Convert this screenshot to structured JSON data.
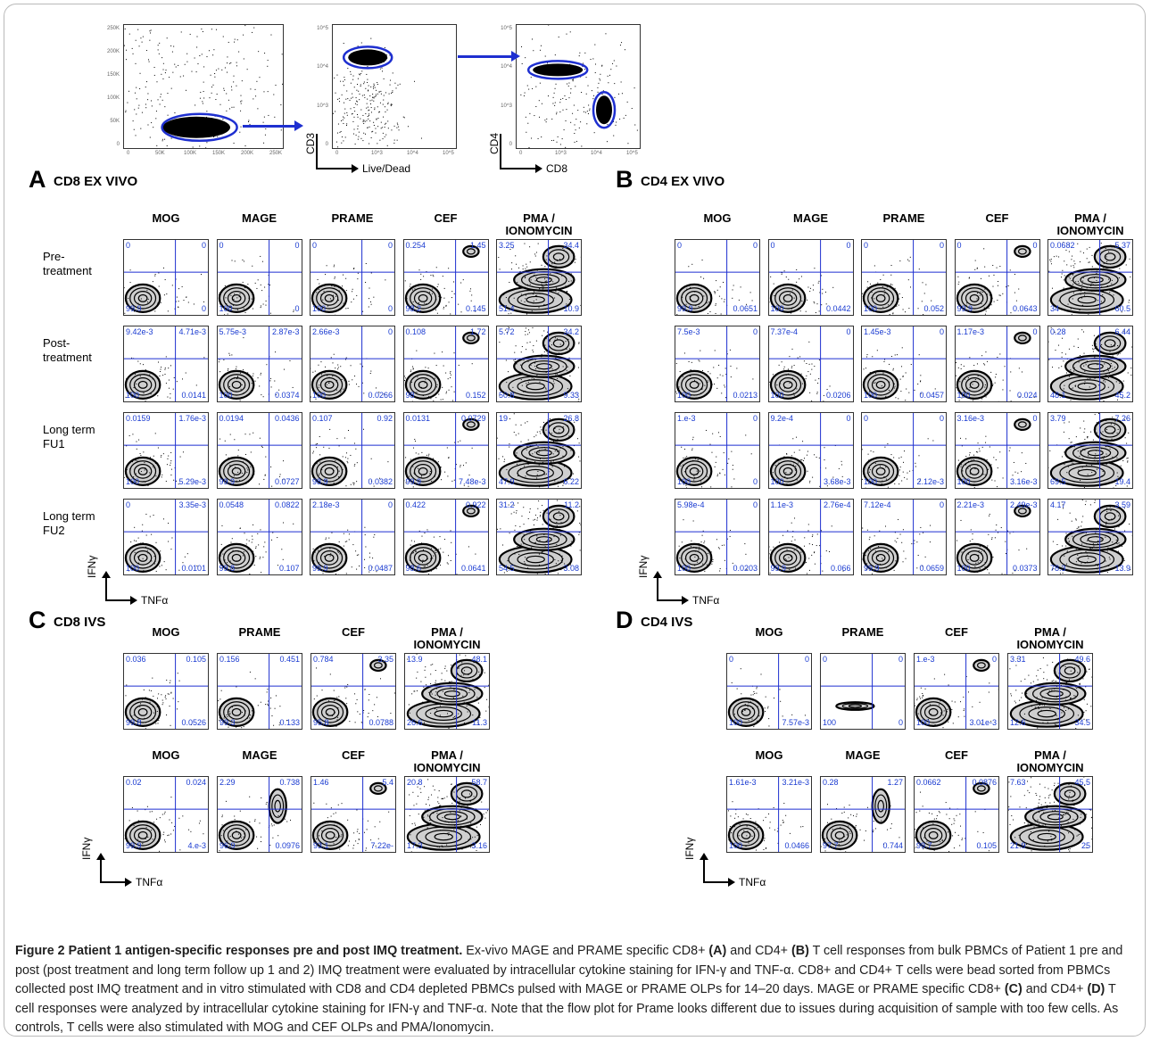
{
  "gating": {
    "plots": [
      {
        "ylabel": "",
        "xlabel": "",
        "yticks": [
          "250K",
          "200K",
          "150K",
          "100K",
          "50K",
          "0"
        ],
        "xticks": [
          "0",
          "50K",
          "100K",
          "150K",
          "200K",
          "250K"
        ]
      },
      {
        "ylabel": "CD3",
        "xlabel": "Live/Dead",
        "yticks": [
          "10^5",
          "10^4",
          "10^3",
          "0"
        ],
        "xticks": [
          "0",
          "10^3",
          "10^4",
          "10^5"
        ]
      },
      {
        "ylabel": "CD4",
        "xlabel": "CD8",
        "yticks": [
          "10^5",
          "10^4",
          "10^3",
          "0"
        ],
        "xticks": [
          "0",
          "10^3",
          "10^4",
          "10^5"
        ]
      }
    ]
  },
  "panel_A": {
    "letter": "A",
    "title": "CD8 EX VIVO",
    "columns": [
      "MOG",
      "MAGE",
      "PRAME",
      "CEF",
      "PMA / IONOMYCIN"
    ],
    "rows": [
      "Pre-\ntreatment",
      "Post-\ntreatment",
      "Long term\nFU1",
      "Long term\nFU2"
    ],
    "ylabel": "IFNγ",
    "xlabel": "TNFα",
    "quadrants": [
      [
        [
          "0",
          "0",
          "99.9",
          "0"
        ],
        [
          "0",
          "0",
          "100",
          "0"
        ],
        [
          "0",
          "0",
          "100",
          "0"
        ],
        [
          "0.254",
          "1.45",
          "98.2",
          "0.145"
        ],
        [
          "3.25",
          "34.4",
          "51.4",
          "10.9"
        ]
      ],
      [
        [
          "9.42e-3",
          "4.71e-3",
          "100",
          "0.0141"
        ],
        [
          "5.75e-3",
          "2.87e-3",
          "100",
          "0.0374"
        ],
        [
          "2.66e-3",
          "0",
          "100",
          "0.0266"
        ],
        [
          "0.108",
          "1.72",
          "98",
          "0.152"
        ],
        [
          "5.72",
          "34.2",
          "50.8",
          "9.33"
        ]
      ],
      [
        [
          "0.0159",
          "1.76e-3",
          "100",
          "5.29e-3"
        ],
        [
          "0.0194",
          "0.0436",
          "99.9",
          "0.0727"
        ],
        [
          "0.107",
          "0.92",
          "98.9",
          "0.0382"
        ],
        [
          "0.0131",
          "0.0729",
          "99.9",
          "7.48e-3"
        ],
        [
          "19",
          "26.8",
          "47.9",
          "6.22"
        ]
      ],
      [
        [
          "0",
          "3.35e-3",
          "100",
          "0.0101"
        ],
        [
          "0.0548",
          "0.0822",
          "99.8",
          "0.107"
        ],
        [
          "2.18e-3",
          "0",
          "99.9",
          "0.0487"
        ],
        [
          "0.422",
          "0.922",
          "98.6",
          "0.0641"
        ],
        [
          "31.2",
          "11.2",
          "54.5",
          "3.08"
        ]
      ]
    ]
  },
  "panel_B": {
    "letter": "B",
    "title": "CD4 EX VIVO",
    "columns": [
      "MOG",
      "MAGE",
      "PRAME",
      "CEF",
      "PMA / IONOMYCIN"
    ],
    "ylabel": "IFNγ",
    "xlabel": "TNFα",
    "quadrants": [
      [
        [
          "0",
          "0",
          "99.9",
          "0.0651"
        ],
        [
          "0",
          "0",
          "100",
          "0.0442"
        ],
        [
          "0",
          "0",
          "100",
          "0.052"
        ],
        [
          "0",
          "0",
          "99.9",
          "0.0643"
        ],
        [
          "0.0682",
          "5.37",
          "34",
          "60.5"
        ]
      ],
      [
        [
          "7.5e-3",
          "0",
          "100",
          "0.0213"
        ],
        [
          "7.37e-4",
          "0",
          "100",
          "0.0206"
        ],
        [
          "1.45e-3",
          "0",
          "100",
          "0.0457"
        ],
        [
          "1.17e-3",
          "0",
          "100",
          "0.024"
        ],
        [
          "0.28",
          "6.44",
          "48.1",
          "45.2"
        ]
      ],
      [
        [
          "1.e-3",
          "0",
          "100",
          "0"
        ],
        [
          "9.2e-4",
          "0",
          "100",
          "3.68e-3"
        ],
        [
          "0",
          "0",
          "100",
          "2.12e-3"
        ],
        [
          "3.16e-3",
          "0",
          "100",
          "3.16e-3"
        ],
        [
          "3.79",
          "7.26",
          "69.5",
          "19.4"
        ]
      ],
      [
        [
          "5.98e-4",
          "0",
          "100",
          "0.0203"
        ],
        [
          "1.1e-3",
          "2.76e-4",
          "99.9",
          "0.066"
        ],
        [
          "7.12e-4",
          "0",
          "99.9",
          "0.0659"
        ],
        [
          "2.21e-3",
          "2.49e-3",
          "100",
          "0.0373"
        ],
        [
          "4.17",
          "3.59",
          "78.3",
          "13.9"
        ]
      ]
    ]
  },
  "panel_C": {
    "letter": "C",
    "title": "CD8 IVS",
    "ylabel": "IFNγ",
    "xlabel": "TNFα",
    "rows": [
      {
        "columns": [
          "MOG",
          "PRAME",
          "CEF",
          "PMA / IONOMYCIN"
        ],
        "quadrants": [
          [
            "0.036",
            "0.105",
            "99.8",
            "0.0526"
          ],
          [
            "0.156",
            "0.451",
            "99.3",
            "0.133"
          ],
          [
            "0.784",
            "3.35",
            "95.8",
            "0.0788"
          ],
          [
            "13.9",
            "48.1",
            "26.6",
            "11.3"
          ]
        ]
      },
      {
        "columns": [
          "MOG",
          "MAGE",
          "CEF",
          "PMA / IONOMYCIN"
        ],
        "quadrants": [
          [
            "0.02",
            "0.024",
            "99.9",
            "4.e-3"
          ],
          [
            "2.29",
            "0.738",
            "96.9",
            "0.0976"
          ],
          [
            "1.46",
            "5.4",
            "93.1",
            "7.22e-"
          ],
          [
            "20.8",
            "58.7",
            "17.3",
            "3.16"
          ]
        ]
      }
    ]
  },
  "panel_D": {
    "letter": "D",
    "title": "CD4 IVS",
    "ylabel": "IFNγ",
    "xlabel": "TNFα",
    "rows": [
      {
        "columns": [
          "MOG",
          "PRAME",
          "CEF",
          "PMA / IONOMYCIN"
        ],
        "quadrants": [
          [
            "0",
            "0",
            "100",
            "7.57e-3"
          ],
          [
            "0",
            "0",
            "100",
            "0"
          ],
          [
            "1.e-3",
            "0",
            "100",
            "3.01e-3"
          ],
          [
            "3.31",
            "49.6",
            "12.6",
            "34.5"
          ]
        ]
      },
      {
        "columns": [
          "MOG",
          "MAGE",
          "CEF",
          "PMA / IONOMYCIN"
        ],
        "quadrants": [
          [
            "1.61e-3",
            "3.21e-3",
            "100",
            "0.0466"
          ],
          [
            "0.28",
            "1.27",
            "97.7",
            "0.744"
          ],
          [
            "0.0662",
            "0.0876",
            "99.7",
            "0.105"
          ],
          [
            "7.63",
            "45.5",
            "21.9",
            "25"
          ]
        ]
      }
    ]
  },
  "caption": {
    "label": "Figure 2 Patient 1 antigen-specific responses pre and post IMQ treatment.",
    "text_1": " Ex-vivo MAGE and PRAME specific CD8+ ",
    "ref_A": "(A)",
    "text_2": " and CD4+ ",
    "ref_B": "(B)",
    "text_3": " T cell responses from bulk PBMCs of Patient 1 pre and post (post treatment and long term follow up 1 and 2) IMQ treatment were evaluated by intracellular cytokine staining for IFN-γ and TNF-α. CD8+ and CD4+ T cells were bead sorted from PBMCs collected post IMQ treatment and in vitro stimulated with CD8 and CD4 depleted PBMCs pulsed with MAGE or PRAME OLPs for 14–20 days. MAGE or PRAME specific CD8+ ",
    "ref_C": "(C)",
    "text_4": " and CD4+ ",
    "ref_D": "(D)",
    "text_5": " T cell responses were analyzed by intracellular cytokine staining for IFN-γ and TNF-α. Note that the flow plot for Prame looks different due to issues during acquisition of sample with too few cells. As controls, T cells were also stimulated with MOG and CEF OLPs and PMA/Ionomycin."
  },
  "colors": {
    "gate": "#1e2fd0",
    "quadrant_text": "#1a3bd1",
    "density": "#000000"
  }
}
